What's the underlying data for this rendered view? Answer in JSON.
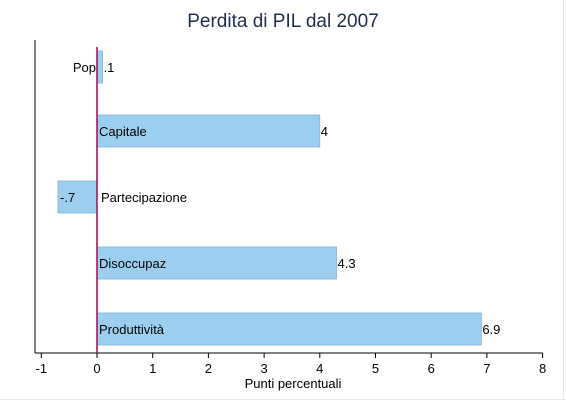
{
  "chart_data": {
    "type": "bar",
    "orientation": "horizontal",
    "title": "Perdita di PIL dal 2007",
    "xlabel": "Punti percentuali",
    "ylabel": "",
    "categories": [
      "Pop",
      "Capitale",
      "Partecipazione",
      "Disoccupaz",
      "Produttività"
    ],
    "values": [
      0.1,
      4,
      -0.7,
      4.3,
      6.9
    ],
    "value_labels": [
      ".1",
      "4",
      "-.7",
      "4.3",
      "6.9"
    ],
    "xlim": [
      -1,
      8
    ],
    "xticks": [
      -1,
      0,
      1,
      2,
      3,
      4,
      5,
      6,
      7,
      8
    ],
    "xtick_labels": [
      "-1",
      "0",
      "1",
      "2",
      "3",
      "4",
      "5",
      "6",
      "7",
      "8"
    ],
    "grid": false,
    "legend": "none",
    "colors": {
      "bar_fill": "#9ccfef",
      "bar_stroke": "#7fb5da",
      "zero_line": "#9b1b5a",
      "axis": "#000000",
      "title": "#1f2d4f"
    }
  }
}
